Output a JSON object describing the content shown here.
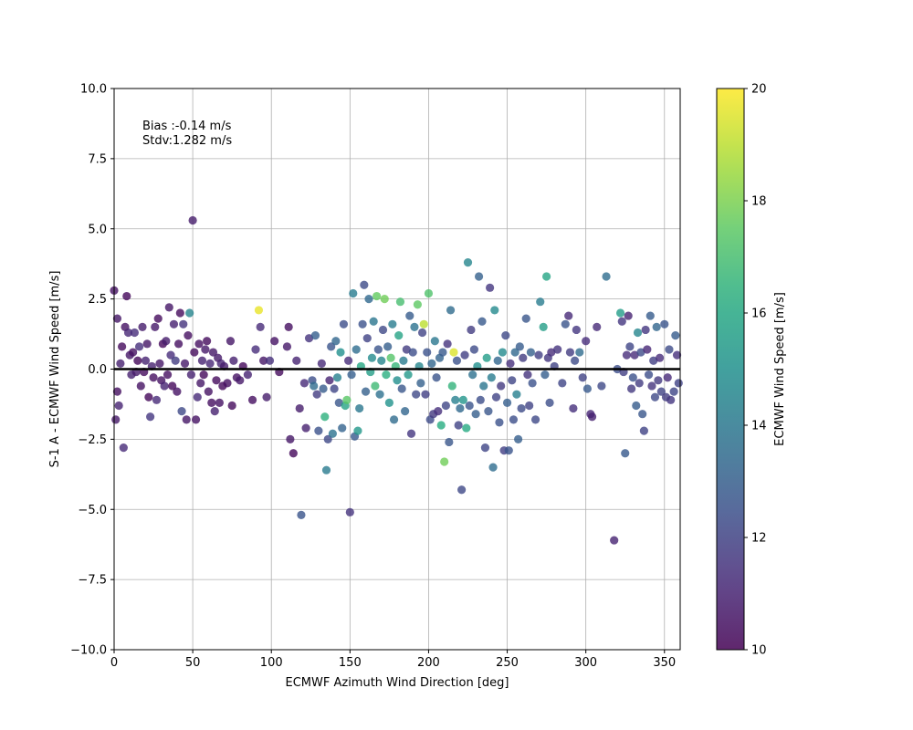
{
  "chart_data": {
    "type": "scatter",
    "title": "",
    "xlabel": "ECMWF Azimuth Wind Direction [deg]",
    "ylabel": "S-1 A - ECMWF Wind Speed [m/s]",
    "xlim": [
      0,
      360
    ],
    "ylim": [
      -10,
      10
    ],
    "xticks": [
      0,
      50,
      100,
      150,
      200,
      250,
      300,
      350
    ],
    "xtick_labels": [
      "0",
      "50",
      "100",
      "150",
      "200",
      "250",
      "300",
      "350"
    ],
    "yticks": [
      -10,
      -7.5,
      -5,
      -2.5,
      0,
      2.5,
      5,
      7.5,
      10
    ],
    "ytick_labels": [
      "−10.0",
      "−7.5",
      "−5.0",
      "−2.5",
      "0.0",
      "2.5",
      "5.0",
      "7.5",
      "10.0"
    ],
    "grid": true,
    "reference_line_y": 0,
    "annotations": [
      "Bias :-0.14 m/s",
      "Stdv:1.282 m/s"
    ],
    "colorbar": {
      "label": "ECMWF Wind Speed [m/s]",
      "colormap": "viridis",
      "range": [
        10,
        20
      ],
      "ticks": [
        10,
        12,
        14,
        16,
        18,
        20
      ],
      "tick_labels": [
        "10",
        "12",
        "14",
        "16",
        "18",
        "20"
      ]
    },
    "points": [
      [
        0,
        2.8,
        10.5
      ],
      [
        2,
        1.8,
        10.6
      ],
      [
        1,
        -1.8,
        10.7
      ],
      [
        2,
        -0.8,
        10.4
      ],
      [
        4,
        0.2,
        10.9
      ],
      [
        3,
        -1.3,
        11.0
      ],
      [
        5,
        0.8,
        10.3
      ],
      [
        6,
        -2.8,
        11.2
      ],
      [
        7,
        1.5,
        10.5
      ],
      [
        8,
        2.6,
        10.2
      ],
      [
        9,
        1.3,
        11.1
      ],
      [
        10,
        0.5,
        10.6
      ],
      [
        11,
        -0.2,
        10.9
      ],
      [
        12,
        0.6,
        10.4
      ],
      [
        13,
        1.3,
        11.3
      ],
      [
        14,
        -0.1,
        10.7
      ],
      [
        15,
        0.3,
        10.2
      ],
      [
        16,
        0.8,
        11.4
      ],
      [
        17,
        -0.6,
        10.5
      ],
      [
        18,
        1.5,
        10.8
      ],
      [
        19,
        -0.1,
        10.3
      ],
      [
        20,
        0.3,
        11.0
      ],
      [
        21,
        0.9,
        10.6
      ],
      [
        22,
        -1.0,
        10.2
      ],
      [
        23,
        -1.7,
        11.6
      ],
      [
        24,
        0.1,
        10.9
      ],
      [
        25,
        -0.3,
        10.4
      ],
      [
        26,
        1.5,
        10.7
      ],
      [
        27,
        -1.1,
        11.2
      ],
      [
        28,
        1.8,
        10.3
      ],
      [
        29,
        0.2,
        10.6
      ],
      [
        30,
        -0.4,
        10.5
      ],
      [
        31,
        0.9,
        10.2
      ],
      [
        32,
        -0.6,
        11.0
      ],
      [
        33,
        1.0,
        10.8
      ],
      [
        34,
        -0.2,
        10.4
      ],
      [
        35,
        2.2,
        10.6
      ],
      [
        36,
        0.5,
        11.3
      ],
      [
        37,
        -0.6,
        10.2
      ],
      [
        38,
        1.6,
        10.9
      ],
      [
        39,
        0.3,
        11.8
      ],
      [
        40,
        -0.8,
        10.5
      ],
      [
        41,
        0.9,
        10.4
      ],
      [
        42,
        2.0,
        10.3
      ],
      [
        43,
        -1.5,
        12.2
      ],
      [
        44,
        1.6,
        11.5
      ],
      [
        45,
        0.2,
        10.7
      ],
      [
        46,
        -1.8,
        10.6
      ],
      [
        47,
        1.2,
        10.4
      ],
      [
        48,
        2.0,
        14.5
      ],
      [
        49,
        -0.2,
        10.9
      ],
      [
        50,
        5.3,
        10.8
      ],
      [
        51,
        0.6,
        10.3
      ],
      [
        52,
        -1.8,
        10.5
      ],
      [
        53,
        -1.0,
        11.2
      ],
      [
        54,
        0.9,
        10.4
      ],
      [
        55,
        -0.5,
        10.6
      ],
      [
        56,
        0.3,
        11.0
      ],
      [
        57,
        -0.2,
        10.2
      ],
      [
        58,
        0.7,
        10.7
      ],
      [
        59,
        1.0,
        10.3
      ],
      [
        60,
        -0.8,
        10.5
      ],
      [
        61,
        0.2,
        11.1
      ],
      [
        62,
        -1.2,
        10.4
      ],
      [
        63,
        0.6,
        10.6
      ],
      [
        64,
        -1.5,
        10.9
      ],
      [
        65,
        -0.4,
        10.3
      ],
      [
        66,
        0.4,
        10.7
      ],
      [
        67,
        -1.2,
        10.5
      ],
      [
        68,
        0.2,
        11.0
      ],
      [
        69,
        -0.6,
        10.2
      ],
      [
        70,
        0.1,
        10.8
      ],
      [
        72,
        -0.5,
        10.4
      ],
      [
        74,
        1.0,
        10.6
      ],
      [
        75,
        -1.3,
        10.3
      ],
      [
        76,
        0.3,
        10.9
      ],
      [
        78,
        -0.3,
        10.5
      ],
      [
        80,
        -0.4,
        10.7
      ],
      [
        82,
        0.1,
        10.2
      ],
      [
        85,
        -0.2,
        11.0
      ],
      [
        88,
        -1.1,
        10.4
      ],
      [
        90,
        0.7,
        11.3
      ],
      [
        92,
        2.1,
        19.7
      ],
      [
        93,
        1.5,
        11.2
      ],
      [
        95,
        0.3,
        10.6
      ],
      [
        97,
        -1.0,
        10.8
      ],
      [
        99,
        0.3,
        11.4
      ],
      [
        102,
        1.0,
        10.5
      ],
      [
        105,
        -0.1,
        10.3
      ],
      [
        110,
        0.8,
        10.7
      ],
      [
        111,
        1.5,
        10.4
      ],
      [
        112,
        -2.5,
        10.6
      ],
      [
        114,
        -3.0,
        10.2
      ],
      [
        116,
        0.3,
        11.0
      ],
      [
        118,
        -1.4,
        10.8
      ],
      [
        119,
        -5.2,
        12.6
      ],
      [
        121,
        -0.5,
        11.2
      ],
      [
        122,
        -2.1,
        10.9
      ],
      [
        124,
        1.1,
        11.5
      ],
      [
        126,
        -0.4,
        12.4
      ],
      [
        127,
        -0.6,
        13.5
      ],
      [
        128,
        1.2,
        13.0
      ],
      [
        129,
        -0.9,
        11.8
      ],
      [
        130,
        -2.2,
        12.5
      ],
      [
        132,
        0.2,
        11.2
      ],
      [
        133,
        -0.7,
        12.9
      ],
      [
        134,
        -1.7,
        16.4
      ],
      [
        135,
        -3.6,
        14.1
      ],
      [
        136,
        -2.5,
        12.2
      ],
      [
        137,
        -0.4,
        11.0
      ],
      [
        138,
        0.8,
        12.6
      ],
      [
        139,
        -2.3,
        13.8
      ],
      [
        140,
        -0.7,
        12.1
      ],
      [
        141,
        1.0,
        13.3
      ],
      [
        142,
        -0.3,
        14.4
      ],
      [
        143,
        -1.2,
        12.7
      ],
      [
        144,
        0.6,
        15.0
      ],
      [
        145,
        -2.1,
        13.2
      ],
      [
        146,
        1.6,
        12.4
      ],
      [
        147,
        -1.3,
        15.8
      ],
      [
        148,
        -1.1,
        17.4
      ],
      [
        149,
        0.3,
        11.3
      ],
      [
        150,
        -5.1,
        11.5
      ],
      [
        151,
        -0.2,
        13.0
      ],
      [
        152,
        2.7,
        14.2
      ],
      [
        153,
        -2.4,
        12.8
      ],
      [
        154,
        0.7,
        13.6
      ],
      [
        155,
        -2.2,
        15.3
      ],
      [
        156,
        -1.4,
        14.0
      ],
      [
        157,
        0.1,
        16.0
      ],
      [
        158,
        1.6,
        12.5
      ],
      [
        159,
        3.0,
        12.3
      ],
      [
        160,
        -0.8,
        13.1
      ],
      [
        161,
        1.1,
        12.0
      ],
      [
        162,
        2.5,
        13.4
      ],
      [
        163,
        -0.1,
        15.6
      ],
      [
        164,
        0.4,
        14.8
      ],
      [
        165,
        1.7,
        13.9
      ],
      [
        166,
        -0.6,
        16.8
      ],
      [
        167,
        2.6,
        17.6
      ],
      [
        168,
        0.7,
        12.6
      ],
      [
        169,
        -0.9,
        13.7
      ],
      [
        170,
        0.3,
        14.5
      ],
      [
        171,
        1.4,
        12.2
      ],
      [
        172,
        2.5,
        17.8
      ],
      [
        173,
        -0.2,
        16.3
      ],
      [
        174,
        0.8,
        13.0
      ],
      [
        175,
        -1.2,
        15.1
      ],
      [
        176,
        0.4,
        17.3
      ],
      [
        177,
        1.6,
        14.2
      ],
      [
        178,
        -1.8,
        13.5
      ],
      [
        179,
        0.1,
        16.6
      ],
      [
        180,
        -0.4,
        14.9
      ],
      [
        181,
        1.2,
        15.8
      ],
      [
        182,
        2.4,
        17.0
      ],
      [
        183,
        -0.7,
        12.7
      ],
      [
        184,
        0.3,
        14.1
      ],
      [
        185,
        -1.5,
        13.3
      ],
      [
        186,
        0.7,
        11.8
      ],
      [
        187,
        -0.2,
        15.4
      ],
      [
        188,
        1.9,
        12.9
      ],
      [
        189,
        -2.3,
        11.6
      ],
      [
        190,
        0.6,
        12.4
      ],
      [
        191,
        1.5,
        13.8
      ],
      [
        192,
        -0.9,
        12.2
      ],
      [
        193,
        2.3,
        17.5
      ],
      [
        194,
        0.1,
        14.6
      ],
      [
        195,
        -0.5,
        13.1
      ],
      [
        196,
        1.3,
        12.0
      ],
      [
        197,
        1.6,
        19.0
      ],
      [
        198,
        -0.9,
        11.9
      ],
      [
        199,
        0.6,
        12.5
      ],
      [
        200,
        2.7,
        17.2
      ],
      [
        201,
        -1.8,
        12.3
      ],
      [
        202,
        0.2,
        13.3
      ],
      [
        203,
        -1.6,
        11.7
      ],
      [
        204,
        1.0,
        14.0
      ],
      [
        205,
        -0.3,
        12.6
      ],
      [
        206,
        -1.5,
        11.4
      ],
      [
        207,
        0.4,
        13.2
      ],
      [
        208,
        -2.0,
        16.2
      ],
      [
        209,
        0.6,
        12.8
      ],
      [
        210,
        -3.3,
        17.8
      ],
      [
        211,
        -1.3,
        12.1
      ],
      [
        212,
        0.9,
        11.5
      ],
      [
        213,
        -2.6,
        12.7
      ],
      [
        214,
        2.1,
        13.5
      ],
      [
        215,
        -0.6,
        16.5
      ],
      [
        216,
        0.6,
        19.5
      ],
      [
        217,
        -1.1,
        14.3
      ],
      [
        218,
        0.3,
        12.5
      ],
      [
        219,
        -2.0,
        12.0
      ],
      [
        220,
        -1.4,
        13.4
      ],
      [
        221,
        -4.3,
        12.2
      ],
      [
        222,
        -1.1,
        15.2
      ],
      [
        223,
        0.5,
        11.9
      ],
      [
        224,
        -2.1,
        16.1
      ],
      [
        225,
        3.8,
        14.6
      ],
      [
        226,
        -1.3,
        12.6
      ],
      [
        227,
        1.4,
        11.8
      ],
      [
        228,
        -0.2,
        13.7
      ],
      [
        229,
        0.7,
        12.3
      ],
      [
        230,
        -1.6,
        13.0
      ],
      [
        231,
        0.1,
        15.0
      ],
      [
        232,
        3.3,
        13.1
      ],
      [
        233,
        -1.1,
        12.4
      ],
      [
        234,
        1.7,
        12.8
      ],
      [
        235,
        -0.6,
        13.9
      ],
      [
        236,
        -2.8,
        12.1
      ],
      [
        237,
        0.4,
        15.5
      ],
      [
        238,
        -1.5,
        12.7
      ],
      [
        239,
        2.9,
        11.6
      ],
      [
        240,
        -0.3,
        14.2
      ],
      [
        241,
        -3.5,
        13.6
      ],
      [
        242,
        2.1,
        14.7
      ],
      [
        243,
        -1.0,
        12.0
      ],
      [
        244,
        0.3,
        13.3
      ],
      [
        245,
        -1.9,
        12.5
      ],
      [
        246,
        -0.6,
        11.7
      ],
      [
        247,
        0.6,
        14.8
      ],
      [
        248,
        -2.9,
        11.9
      ],
      [
        249,
        1.2,
        12.2
      ],
      [
        250,
        -1.2,
        13.0
      ],
      [
        251,
        -2.9,
        12.6
      ],
      [
        252,
        0.2,
        11.4
      ],
      [
        253,
        -0.4,
        12.1
      ],
      [
        254,
        -1.8,
        12.4
      ],
      [
        255,
        0.6,
        13.4
      ],
      [
        256,
        -0.9,
        14.3
      ],
      [
        257,
        -2.5,
        13.0
      ],
      [
        258,
        0.8,
        12.9
      ],
      [
        259,
        -1.4,
        12.3
      ],
      [
        260,
        0.4,
        11.8
      ],
      [
        262,
        1.8,
        12.7
      ],
      [
        263,
        -0.2,
        11.5
      ],
      [
        264,
        -1.3,
        12.0
      ],
      [
        265,
        0.6,
        13.1
      ],
      [
        266,
        -0.5,
        12.5
      ],
      [
        268,
        -1.8,
        12.2
      ],
      [
        270,
        0.5,
        11.9
      ],
      [
        271,
        2.4,
        14.2
      ],
      [
        273,
        1.5,
        15.6
      ],
      [
        274,
        -0.2,
        13.0
      ],
      [
        275,
        3.3,
        15.9
      ],
      [
        276,
        0.4,
        11.6
      ],
      [
        277,
        -1.2,
        12.4
      ],
      [
        278,
        0.6,
        11.3
      ],
      [
        280,
        0.1,
        12.0
      ],
      [
        282,
        0.7,
        11.5
      ],
      [
        285,
        -0.5,
        12.1
      ],
      [
        287,
        1.6,
        12.6
      ],
      [
        289,
        1.9,
        11.2
      ],
      [
        290,
        0.6,
        11.8
      ],
      [
        292,
        -1.4,
        11.4
      ],
      [
        293,
        0.3,
        12.3
      ],
      [
        294,
        1.4,
        11.6
      ],
      [
        296,
        0.6,
        13.5
      ],
      [
        298,
        -0.3,
        12.0
      ],
      [
        300,
        1.0,
        11.3
      ],
      [
        301,
        -0.7,
        12.8
      ],
      [
        303,
        -1.6,
        11.1
      ],
      [
        304,
        -1.7,
        10.9
      ],
      [
        307,
        1.5,
        11.2
      ],
      [
        310,
        -0.6,
        12.2
      ],
      [
        313,
        3.3,
        13.6
      ],
      [
        318,
        -6.1,
        11.0
      ],
      [
        320,
        0.0,
        12.4
      ],
      [
        322,
        2.0,
        15.5
      ],
      [
        323,
        1.7,
        11.6
      ],
      [
        324,
        -0.1,
        11.9
      ],
      [
        325,
        -3.0,
        12.8
      ],
      [
        326,
        0.5,
        11.3
      ],
      [
        327,
        1.9,
        11.0
      ],
      [
        328,
        0.8,
        12.1
      ],
      [
        329,
        -0.7,
        11.7
      ],
      [
        330,
        -0.3,
        12.5
      ],
      [
        331,
        0.5,
        11.2
      ],
      [
        332,
        -1.3,
        12.9
      ],
      [
        333,
        1.3,
        14.6
      ],
      [
        334,
        -0.5,
        11.8
      ],
      [
        335,
        0.6,
        12.3
      ],
      [
        336,
        -1.6,
        12.7
      ],
      [
        337,
        -2.2,
        12.0
      ],
      [
        338,
        1.4,
        11.6
      ],
      [
        339,
        0.7,
        11.1
      ],
      [
        340,
        -0.2,
        12.4
      ],
      [
        341,
        1.9,
        12.9
      ],
      [
        342,
        -0.6,
        11.5
      ],
      [
        343,
        0.3,
        11.9
      ],
      [
        344,
        -1.0,
        12.2
      ],
      [
        345,
        1.5,
        13.3
      ],
      [
        346,
        -0.4,
        11.7
      ],
      [
        347,
        0.4,
        11.3
      ],
      [
        348,
        -0.8,
        12.0
      ],
      [
        350,
        1.6,
        12.6
      ],
      [
        351,
        -1.0,
        11.8
      ],
      [
        352,
        -0.3,
        11.2
      ],
      [
        353,
        0.7,
        12.3
      ],
      [
        354,
        -1.1,
        11.6
      ],
      [
        356,
        -0.8,
        12.1
      ],
      [
        357,
        1.2,
        12.9
      ],
      [
        358,
        0.5,
        11.4
      ],
      [
        359,
        -0.5,
        12.0
      ]
    ]
  }
}
